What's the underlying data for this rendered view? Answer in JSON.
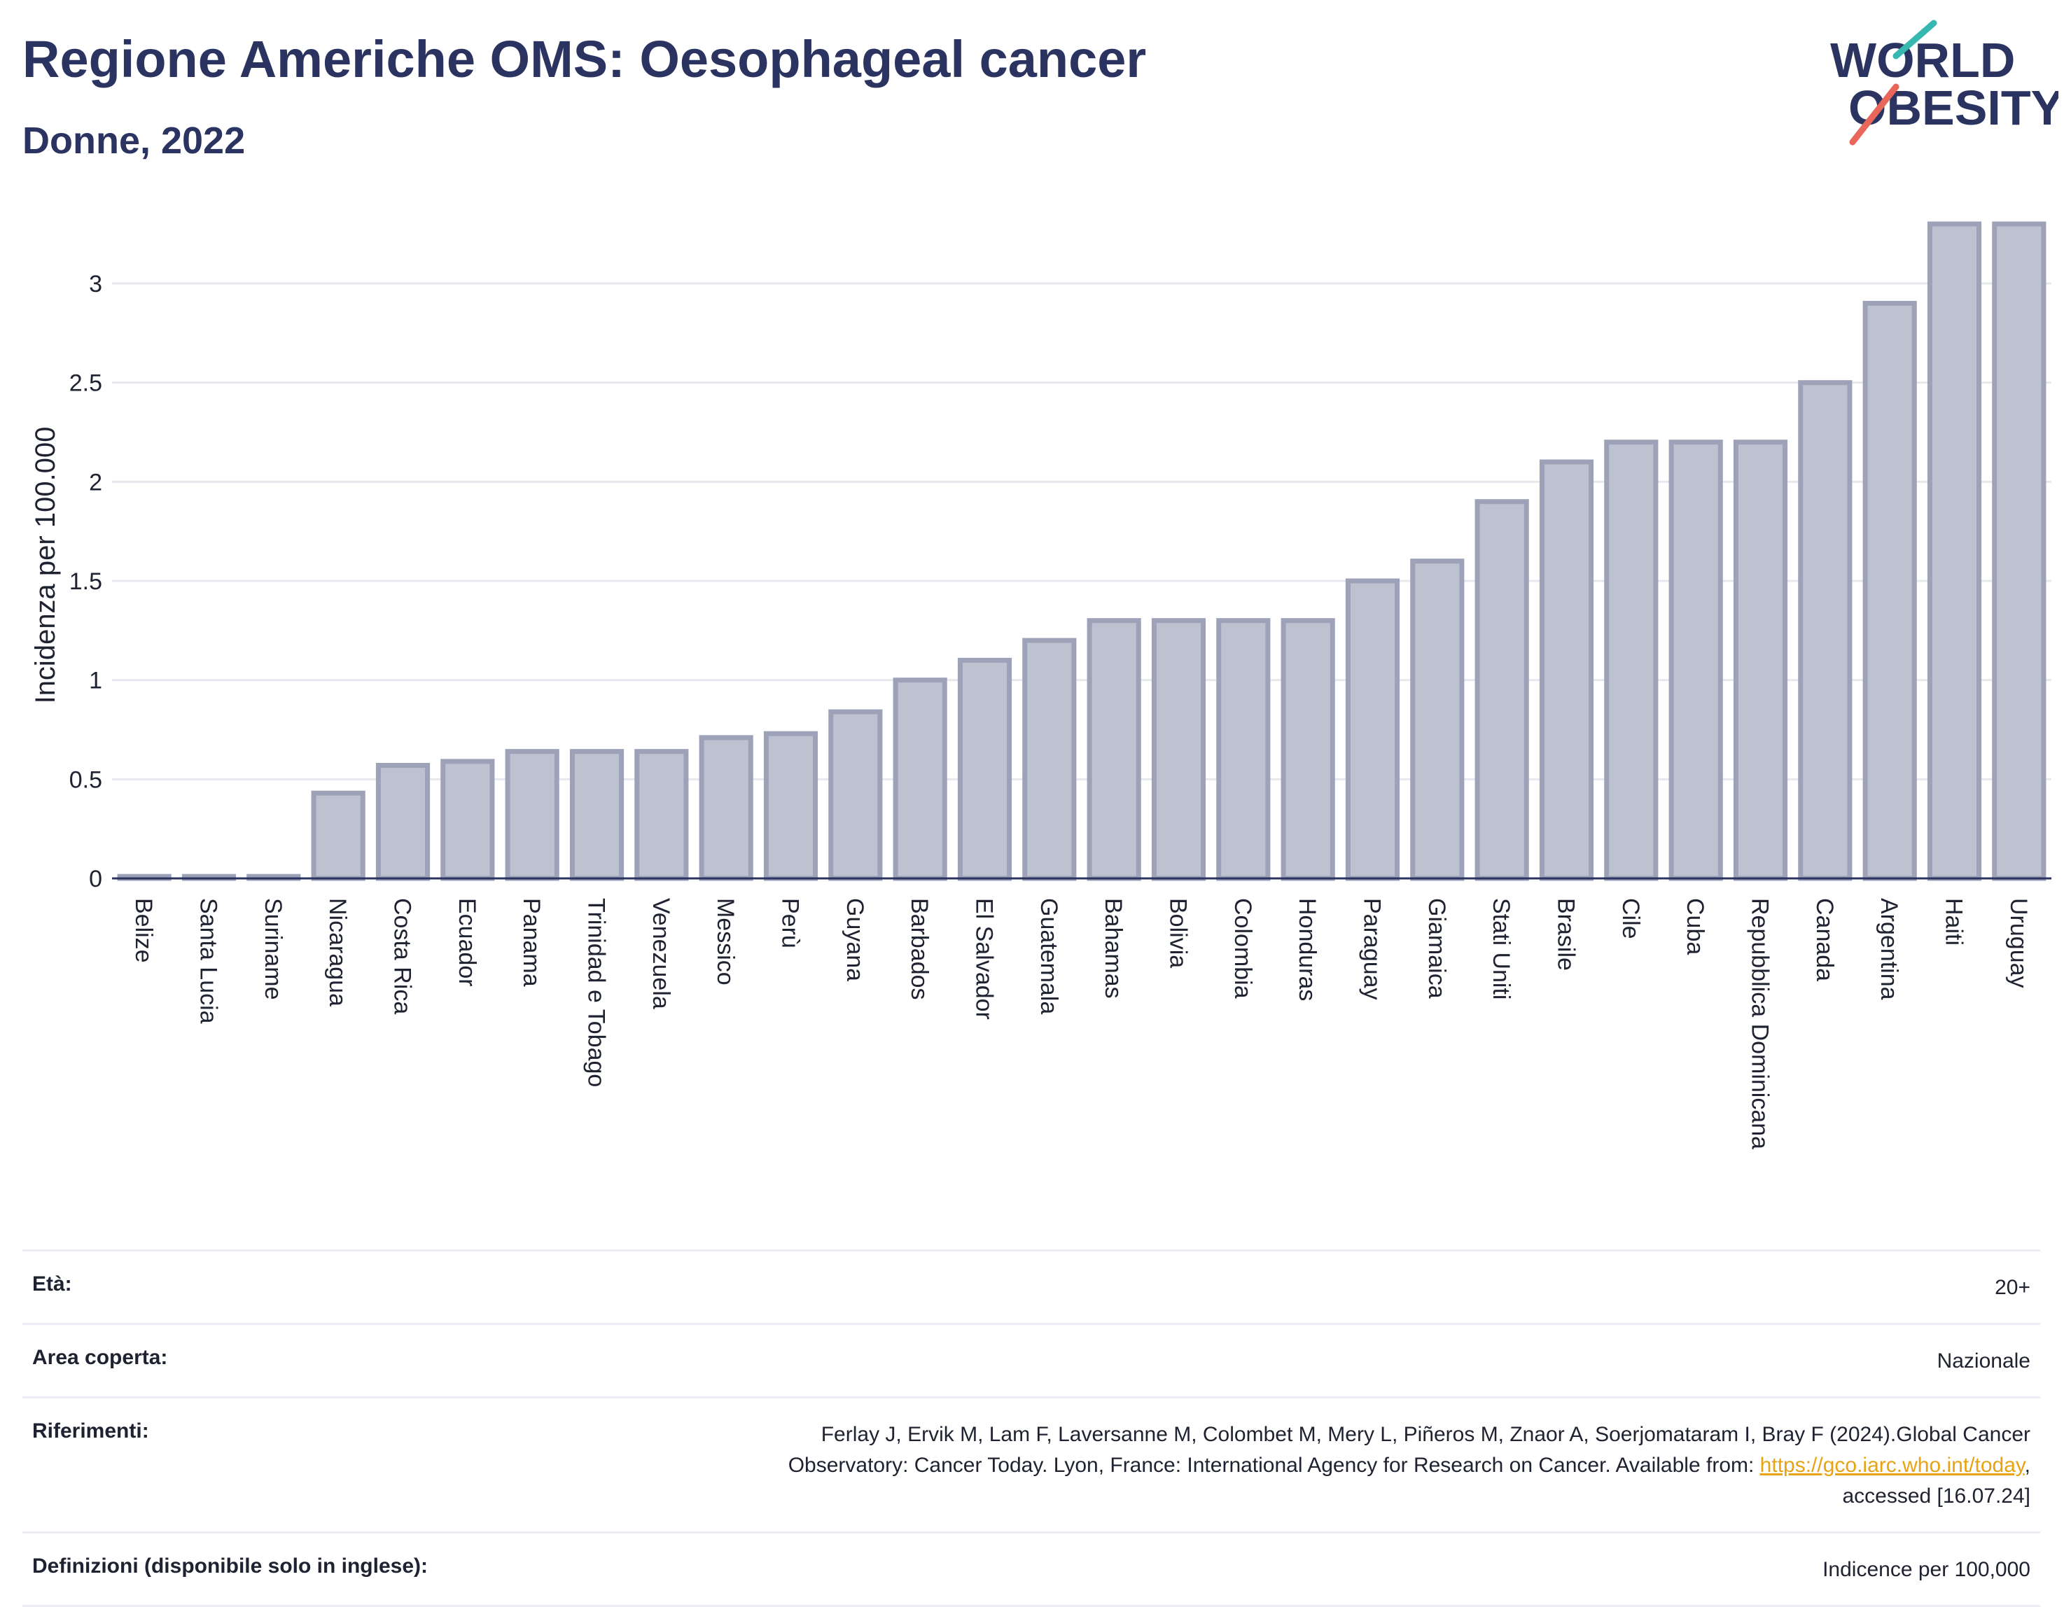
{
  "header": {
    "title": "Regione Americhe OMS: Oesophageal cancer",
    "subtitle": "Donne, 2022"
  },
  "logo": {
    "line1": "WORLD",
    "line2": "OBESITY",
    "icon": "world-obesity-logo"
  },
  "colors": {
    "bar_fill": "#bec1d0",
    "bar_stroke": "#9da2b9",
    "title": "#2b3461",
    "grid": "#e6e8ee",
    "axis": "#2b3461",
    "link": "#e8a313",
    "logo_teal": "#36b7b0",
    "logo_red": "#e8665a"
  },
  "chart_data": {
    "type": "bar",
    "title": "Regione Americhe OMS: Oesophageal cancer",
    "subtitle": "Donne, 2022",
    "xlabel": "",
    "ylabel": "Incidenza per 100.000",
    "ylim": [
      0,
      3.3
    ],
    "yticks": [
      0,
      0.5,
      1,
      1.5,
      2,
      2.5,
      3
    ],
    "ytick_labels": [
      "0",
      "0.5",
      "1",
      "1.5",
      "2",
      "2.5",
      "3"
    ],
    "grid": true,
    "categories": [
      "Belize",
      "Santa Lucia",
      "Suriname",
      "Nicaragua",
      "Costa Rica",
      "Ecuador",
      "Panama",
      "Trinidad e Tobago",
      "Venezuela",
      "Messico",
      "Perù",
      "Guyana",
      "Barbados",
      "El Salvador",
      "Guatemala",
      "Bahamas",
      "Bolivia",
      "Colombia",
      "Honduras",
      "Paraguay",
      "Giamaica",
      "Stati Uniti",
      "Brasile",
      "Cile",
      "Cuba",
      "Repubblica Dominicana",
      "Canada",
      "Argentina",
      "Haiti",
      "Uruguay"
    ],
    "values": [
      0.01,
      0.01,
      0.01,
      0.43,
      0.57,
      0.59,
      0.64,
      0.64,
      0.64,
      0.71,
      0.73,
      0.84,
      1.0,
      1.1,
      1.2,
      1.3,
      1.3,
      1.3,
      1.3,
      1.5,
      1.6,
      1.9,
      2.1,
      2.2,
      2.2,
      2.2,
      2.5,
      2.9,
      3.3,
      3.3
    ]
  },
  "info": {
    "age_label": "Età:",
    "age_value": "20+",
    "coverage_label": "Area coperta:",
    "coverage_value": "Nazionale",
    "references_label": "Riferimenti:",
    "references_text_1": "Ferlay J, Ervik M, Lam F, Laversanne M, Colombet M, Mery L, Piñeros M, Znaor A, Soerjomataram I, Bray F (2024).Global Cancer",
    "references_text_2": "Observatory: Cancer Today. Lyon, France: International Agency for Research on Cancer. Available from: ",
    "references_link": "https://gco.iarc.who.int/today",
    "references_text_3": ",",
    "references_text_4": "accessed [16.07.24]",
    "definitions_label": "Definizioni (disponibile solo in inglese):",
    "definitions_value": "Indicence per 100,000"
  }
}
